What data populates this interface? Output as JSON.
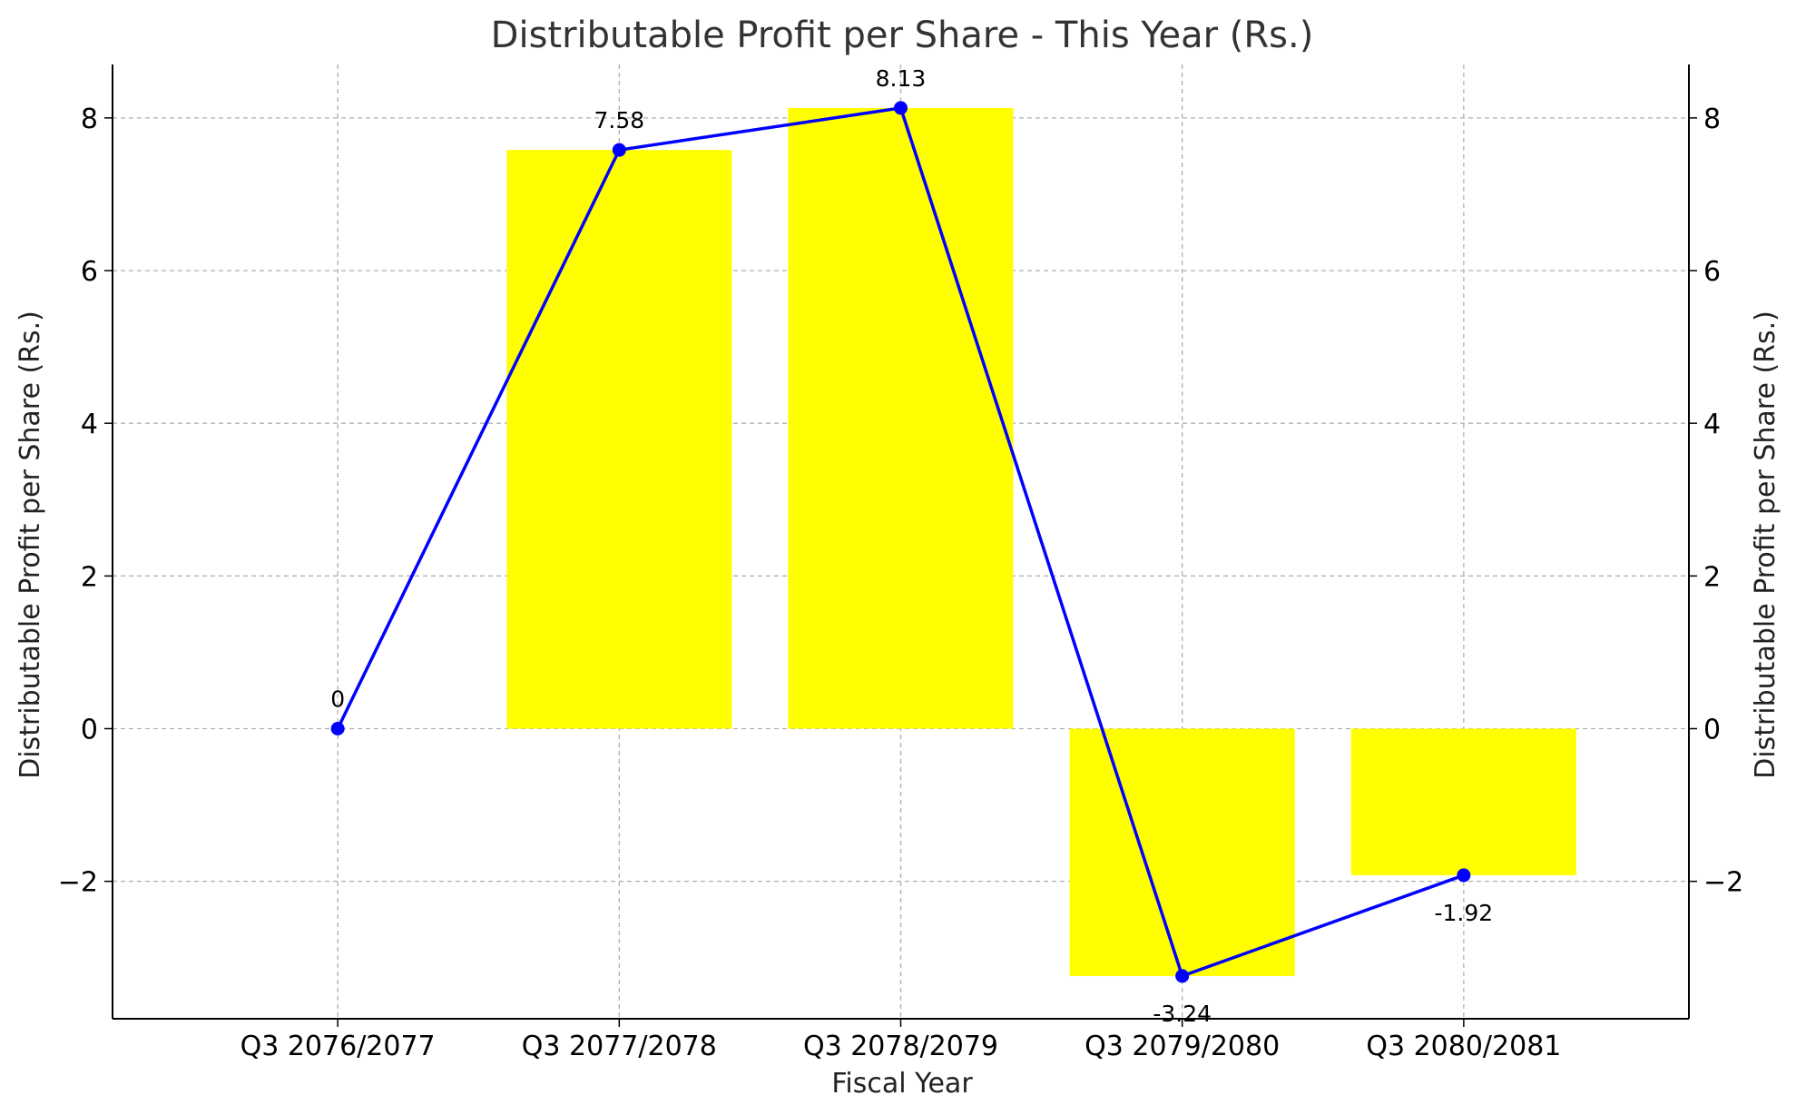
{
  "chart_data": {
    "type": "bar",
    "title": "Distributable Profit per Share - This Year (Rs.)",
    "xlabel": "Fiscal Year",
    "ylabel": "Distributable Profit per Share (Rs.)",
    "ylabel_right": "Distributable Profit per Share (Rs.)",
    "categories": [
      "Q3 2076/2077",
      "Q3 2077/2078",
      "Q3 2078/2079",
      "Q3 2079/2080",
      "Q3 2080/2081"
    ],
    "values": [
      0,
      7.58,
      8.13,
      -3.24,
      -1.92
    ],
    "data_labels": [
      "0",
      "7.58",
      "8.13",
      "-3.24",
      "-1.92"
    ],
    "ylim": [
      -3.8,
      8.7
    ],
    "yticks": [
      -2,
      0,
      2,
      4,
      6,
      8
    ],
    "ytick_labels": [
      "−2",
      "0",
      "2",
      "4",
      "6",
      "8"
    ],
    "grid": true,
    "bar_color": "#ffff00",
    "line_color": "#0000ff",
    "grid_color": "#b0b0b0"
  }
}
